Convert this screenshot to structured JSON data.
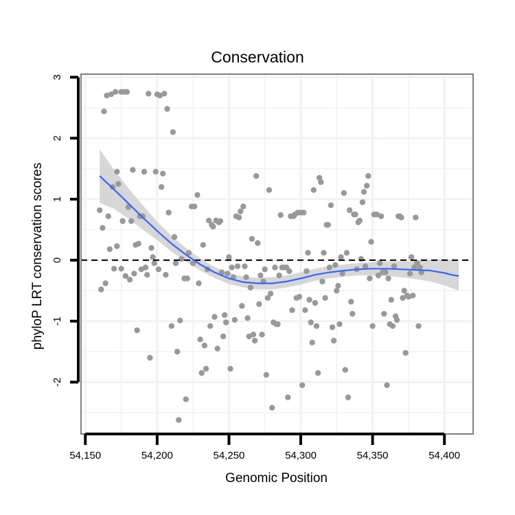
{
  "chart_data": {
    "type": "scatter",
    "title": "Conservation",
    "xlabel": "Genomic Position",
    "ylabel": "phyloP LRT conservation scores",
    "xlim": [
      54147,
      54420
    ],
    "ylim": [
      -2.85,
      3.05
    ],
    "x_ticks": [
      54150,
      54200,
      54250,
      54300,
      54350,
      54400
    ],
    "x_tick_labels": [
      "54,150",
      "54,200",
      "54,250",
      "54,300",
      "54,350",
      "54,400"
    ],
    "y_ticks": [
      -2,
      -1,
      0,
      1,
      2,
      3
    ],
    "y_tick_labels": [
      "-2",
      "-1",
      "0",
      "1",
      "2",
      "3"
    ],
    "reference_line": {
      "y": 0,
      "style": "dashed"
    },
    "grid": true,
    "colors": {
      "points": "#999999",
      "smooth_line": "#3366ff",
      "ribbon": "#d3d3d3",
      "panel_border": "#7f7f7f",
      "grid": "#f2f2f2"
    },
    "points": [
      [
        54160,
        0.82
      ],
      [
        54161,
        -0.48
      ],
      [
        54162,
        0.53
      ],
      [
        54163,
        2.44
      ],
      [
        54164,
        -0.38
      ],
      [
        54165,
        2.7
      ],
      [
        54166,
        0.72
      ],
      [
        54167,
        0.18
      ],
      [
        54168,
        2.72
      ],
      [
        54169,
        1.2
      ],
      [
        54170,
        -0.14
      ],
      [
        54171,
        2.76
      ],
      [
        54172,
        1.45
      ],
      [
        54172,
        0.23
      ],
      [
        54173,
        1.25
      ],
      [
        54175,
        2.76
      ],
      [
        54175,
        -0.14
      ],
      [
        54176,
        0.64
      ],
      [
        54177,
        2.76
      ],
      [
        54178,
        -0.26
      ],
      [
        54179,
        2.76
      ],
      [
        54180,
        0.87
      ],
      [
        54181,
        -0.32
      ],
      [
        54182,
        0.64
      ],
      [
        54183,
        1.48
      ],
      [
        54184,
        -0.22
      ],
      [
        54185,
        0.25
      ],
      [
        54186,
        -1.15
      ],
      [
        54187,
        0.27
      ],
      [
        54188,
        0.72
      ],
      [
        54189,
        -0.15
      ],
      [
        54190,
        0.72
      ],
      [
        54191,
        1.45
      ],
      [
        54192,
        -0.12
      ],
      [
        54193,
        -0.24
      ],
      [
        54194,
        2.73
      ],
      [
        54195,
        -1.6
      ],
      [
        54196,
        0.2
      ],
      [
        54197,
        0.05
      ],
      [
        54198,
        -0.05
      ],
      [
        54199,
        1.45
      ],
      [
        54200,
        2.72
      ],
      [
        54201,
        -0.15
      ],
      [
        54202,
        2.7
      ],
      [
        54203,
        1.2
      ],
      [
        54204,
        1.42
      ],
      [
        54205,
        2.73
      ],
      [
        54206,
        -0.24
      ],
      [
        54207,
        2.48
      ],
      [
        54208,
        0.78
      ],
      [
        54210,
        -1.08
      ],
      [
        54211,
        2.1
      ],
      [
        54212,
        0.38
      ],
      [
        54213,
        -0.05
      ],
      [
        54214,
        -1.5
      ],
      [
        54215,
        -2.62
      ],
      [
        54216,
        -0.99
      ],
      [
        54217,
        0.02
      ],
      [
        54219,
        -0.3
      ],
      [
        54220,
        -2.28
      ],
      [
        54221,
        -0.3
      ],
      [
        54222,
        0.12
      ],
      [
        54224,
        0.88
      ],
      [
        54225,
        -0.05
      ],
      [
        54226,
        0.88
      ],
      [
        54228,
        1.07
      ],
      [
        54229,
        -0.38
      ],
      [
        54230,
        -1.3
      ],
      [
        54231,
        -1.85
      ],
      [
        54232,
        0.25
      ],
      [
        54233,
        -1.4
      ],
      [
        54234,
        -1.78
      ],
      [
        54235,
        -0.15
      ],
      [
        54236,
        0.65
      ],
      [
        54237,
        -1.08
      ],
      [
        54238,
        0.58
      ],
      [
        54239,
        0.55
      ],
      [
        54240,
        -0.93
      ],
      [
        54241,
        0.65
      ],
      [
        54242,
        -1.45
      ],
      [
        54243,
        0.62
      ],
      [
        54244,
        0.64
      ],
      [
        54245,
        -0.2
      ],
      [
        54246,
        -1.25
      ],
      [
        54247,
        -0.9
      ],
      [
        54248,
        -1.02
      ],
      [
        54249,
        -0.22
      ],
      [
        54250,
        0.05
      ],
      [
        54251,
        -1.78
      ],
      [
        54252,
        -0.12
      ],
      [
        54253,
        -0.28
      ],
      [
        54254,
        -0.98
      ],
      [
        54255,
        0.72
      ],
      [
        54256,
        -0.1
      ],
      [
        54257,
        0.7
      ],
      [
        54258,
        0.8
      ],
      [
        54259,
        -0.75
      ],
      [
        54260,
        0.88
      ],
      [
        54261,
        -0.1
      ],
      [
        54262,
        -0.28
      ],
      [
        54263,
        -0.95
      ],
      [
        54264,
        -1.25
      ],
      [
        54265,
        -0.45
      ],
      [
        54266,
        0.35
      ],
      [
        54267,
        -1.22
      ],
      [
        54268,
        -1.32
      ],
      [
        54269,
        1.38
      ],
      [
        54270,
        0.28
      ],
      [
        54271,
        -0.72
      ],
      [
        54272,
        -0.25
      ],
      [
        54273,
        -1.22
      ],
      [
        54274,
        -0.35
      ],
      [
        54275,
        -0.15
      ],
      [
        54276,
        -1.88
      ],
      [
        54277,
        -0.62
      ],
      [
        54278,
        1.15
      ],
      [
        54279,
        -0.55
      ],
      [
        54280,
        -2.42
      ],
      [
        54281,
        -1.02
      ],
      [
        54282,
        -0.12
      ],
      [
        54283,
        -1.05
      ],
      [
        54284,
        -1.05
      ],
      [
        54285,
        -0.25
      ],
      [
        54286,
        0.74
      ],
      [
        54287,
        -0.12
      ],
      [
        54288,
        -0.12
      ],
      [
        54290,
        -0.12
      ],
      [
        54291,
        -2.25
      ],
      [
        54292,
        -0.18
      ],
      [
        54293,
        0.72
      ],
      [
        54294,
        -0.82
      ],
      [
        54295,
        0.72
      ],
      [
        54296,
        0.75
      ],
      [
        54297,
        -0.62
      ],
      [
        54298,
        0.78
      ],
      [
        54299,
        -0.6
      ],
      [
        54300,
        0.78
      ],
      [
        54301,
        -2.05
      ],
      [
        54302,
        0.78
      ],
      [
        54303,
        -0.82
      ],
      [
        54304,
        -0.18
      ],
      [
        54305,
        0.12
      ],
      [
        54306,
        -0.65
      ],
      [
        54307,
        -1.02
      ],
      [
        54308,
        -1.35
      ],
      [
        54309,
        1.15
      ],
      [
        54310,
        -0.7
      ],
      [
        54311,
        -1.08
      ],
      [
        54312,
        -1.85
      ],
      [
        54313,
        1.35
      ],
      [
        54314,
        1.28
      ],
      [
        54315,
        -0.35
      ],
      [
        54316,
        0.12
      ],
      [
        54317,
        -0.62
      ],
      [
        54318,
        0.58
      ],
      [
        54319,
        0.58
      ],
      [
        54320,
        -0.12
      ],
      [
        54321,
        0.9
      ],
      [
        54322,
        -1.1
      ],
      [
        54323,
        -1.32
      ],
      [
        54324,
        -0.08
      ],
      [
        54325,
        -0.5
      ],
      [
        54326,
        -0.42
      ],
      [
        54327,
        -1.05
      ],
      [
        54328,
        0.05
      ],
      [
        54329,
        -0.22
      ],
      [
        54330,
        1.1
      ],
      [
        54331,
        -1.8
      ],
      [
        54332,
        0.12
      ],
      [
        54333,
        -2.25
      ],
      [
        54334,
        0.82
      ],
      [
        54335,
        -0.68
      ],
      [
        54336,
        -0.88
      ],
      [
        54337,
        0.75
      ],
      [
        54338,
        0.75
      ],
      [
        54339,
        -0.15
      ],
      [
        54340,
        0.62
      ],
      [
        54341,
        0.65
      ],
      [
        54342,
        0.02
      ],
      [
        54343,
        0.95
      ],
      [
        54344,
        1.12
      ],
      [
        54345,
        -0.1
      ],
      [
        54346,
        1.22
      ],
      [
        54347,
        1.38
      ],
      [
        54348,
        -0.3
      ],
      [
        54349,
        0.3
      ],
      [
        54350,
        -1.08
      ],
      [
        54351,
        0.75
      ],
      [
        54352,
        0.75
      ],
      [
        54353,
        0.75
      ],
      [
        54354,
        -0.25
      ],
      [
        54355,
        -0.05
      ],
      [
        54356,
        0.72
      ],
      [
        54357,
        -0.2
      ],
      [
        54358,
        -0.88
      ],
      [
        54359,
        -0.2
      ],
      [
        54360,
        -2.05
      ],
      [
        54361,
        -0.3
      ],
      [
        54362,
        -1.05
      ],
      [
        54363,
        -0.65
      ],
      [
        54364,
        -1.08
      ],
      [
        54365,
        -0.1
      ],
      [
        54366,
        -0.92
      ],
      [
        54367,
        -0.98
      ],
      [
        54368,
        0.72
      ],
      [
        54369,
        0.72
      ],
      [
        54370,
        0.7
      ],
      [
        54371,
        -0.62
      ],
      [
        54372,
        -0.5
      ],
      [
        54373,
        -1.52
      ],
      [
        54374,
        -0.58
      ],
      [
        54375,
        -0.6
      ],
      [
        54376,
        -0.22
      ],
      [
        54377,
        0.05
      ],
      [
        54378,
        -0.58
      ],
      [
        54379,
        -0.12
      ],
      [
        54380,
        0.7
      ],
      [
        54381,
        -0.05
      ],
      [
        54382,
        -1.08
      ],
      [
        54383,
        -0.12
      ],
      [
        54384,
        -0.2
      ]
    ],
    "smooth": {
      "x": [
        54160,
        54170,
        54180,
        54190,
        54200,
        54210,
        54220,
        54230,
        54240,
        54250,
        54260,
        54270,
        54280,
        54290,
        54300,
        54310,
        54320,
        54330,
        54340,
        54350,
        54360,
        54370,
        54380,
        54390,
        54400,
        54405,
        54410
      ],
      "y": [
        1.38,
        1.16,
        0.93,
        0.7,
        0.48,
        0.27,
        0.09,
        -0.07,
        -0.2,
        -0.3,
        -0.36,
        -0.38,
        -0.38,
        -0.35,
        -0.3,
        -0.24,
        -0.2,
        -0.17,
        -0.15,
        -0.14,
        -0.14,
        -0.15,
        -0.16,
        -0.17,
        -0.21,
        -0.24,
        -0.26
      ],
      "lower": [
        0.94,
        0.84,
        0.68,
        0.5,
        0.33,
        0.14,
        -0.02,
        -0.17,
        -0.29,
        -0.39,
        -0.45,
        -0.48,
        -0.48,
        -0.45,
        -0.4,
        -0.34,
        -0.3,
        -0.27,
        -0.25,
        -0.25,
        -0.26,
        -0.28,
        -0.31,
        -0.35,
        -0.41,
        -0.46,
        -0.5
      ],
      "upper": [
        1.82,
        1.48,
        1.18,
        0.9,
        0.63,
        0.4,
        0.2,
        0.03,
        -0.11,
        -0.21,
        -0.27,
        -0.29,
        -0.28,
        -0.25,
        -0.2,
        -0.14,
        -0.1,
        -0.07,
        -0.05,
        -0.03,
        -0.02,
        -0.02,
        -0.01,
        0.01,
        0.02,
        0.0,
        -0.02
      ]
    }
  }
}
